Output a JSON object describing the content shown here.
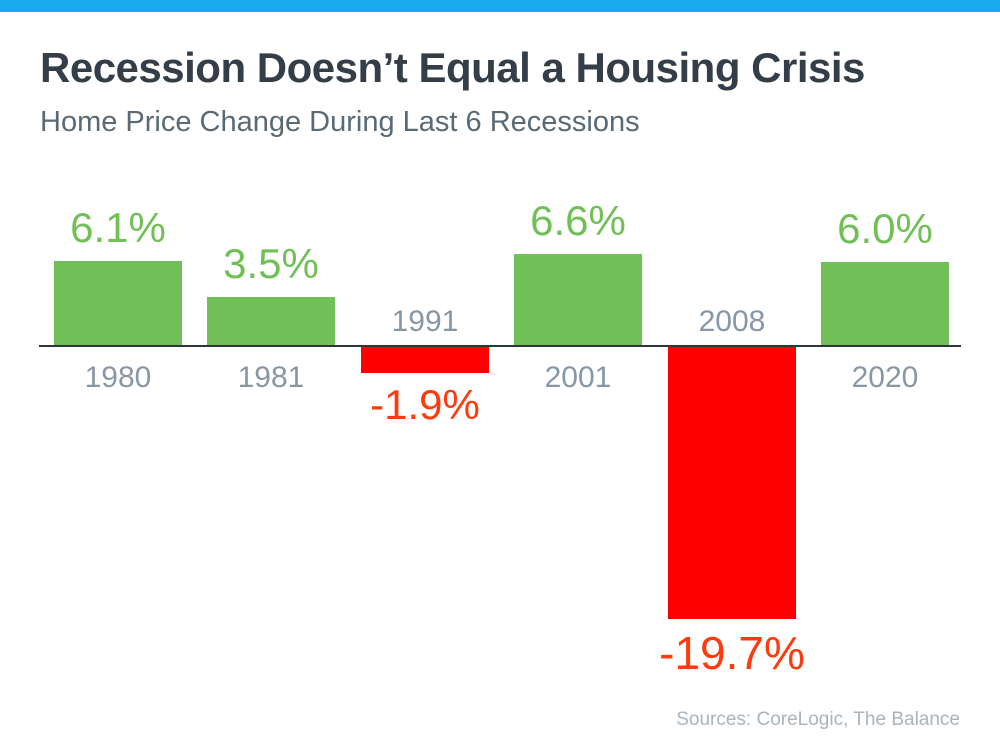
{
  "header": {
    "title": "Recession Doesn’t Equal a Housing Crisis",
    "subtitle": "Home Price Change During Last 6 Recessions"
  },
  "footer": {
    "source": "Sources: CoreLogic, The Balance"
  },
  "colors": {
    "accent_bar": "#17aaec",
    "title_text": "#333e48",
    "subtitle_text": "#5a6a75",
    "year_label_text": "#8797a6",
    "axis_line": "#2e363c",
    "source_text": "#a9b4bc"
  },
  "chart_data": {
    "type": "bar",
    "title": "Recession Doesn’t Equal a Housing Crisis",
    "subtitle": "Home Price Change During Last 6 Recessions",
    "categories": [
      "1980",
      "1981",
      "1991",
      "2001",
      "2008",
      "2020"
    ],
    "values": [
      6.1,
      3.5,
      -1.9,
      6.6,
      -19.7,
      6.0
    ],
    "labels": [
      "6.1%",
      "3.5%",
      "-1.9%",
      "6.6%",
      "-19.7%",
      "6.0%"
    ],
    "positive_color": "#71c057",
    "negative_color": "#ff0000",
    "negative_label_color": "#ff3a0c",
    "baseline": 0,
    "grid": false,
    "legend": false,
    "source": "Sources: CoreLogic, The Balance"
  }
}
